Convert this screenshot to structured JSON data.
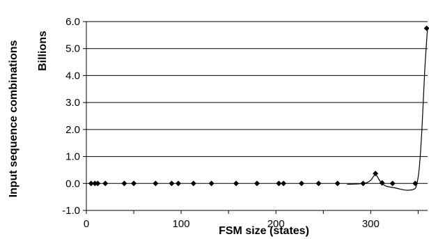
{
  "chart_data": {
    "type": "scatter",
    "title": "",
    "xlabel": "FSM size (states)",
    "ylabel": "Input sequence combinations",
    "yunit": "Billions",
    "xlim": [
      0,
      360
    ],
    "ylim": [
      -1.0,
      6.0
    ],
    "x_ticks": [
      0,
      100,
      200,
      300
    ],
    "x_tick_labels": [
      "0",
      "100",
      "200",
      "300"
    ],
    "y_ticks": [
      -1.0,
      0.0,
      1.0,
      2.0,
      3.0,
      4.0,
      5.0,
      6.0
    ],
    "y_tick_labels": [
      "-1.0",
      "0.0",
      "1.0",
      "2.0",
      "3.0",
      "4.0",
      "5.0",
      "6.0"
    ],
    "grid": "horizontal",
    "legend": "none",
    "marker_color": "#000000",
    "series": [
      {
        "x": [
          5,
          9,
          12,
          20,
          40,
          50,
          73,
          90,
          97,
          113,
          132,
          158,
          180,
          203,
          208,
          227,
          245,
          265,
          292,
          305,
          312,
          323,
          347,
          359
        ],
        "y": [
          0,
          0,
          0,
          0,
          0,
          0,
          0,
          0,
          0,
          0,
          0,
          0,
          0,
          0,
          0,
          0,
          0,
          0,
          0,
          0.37,
          0.02,
          0,
          0,
          5.75
        ]
      }
    ],
    "trendline": {
      "x": [
        275,
        285,
        295,
        300,
        305,
        310,
        315,
        320,
        325,
        330,
        335,
        340,
        345,
        348,
        351,
        354,
        357,
        360
      ],
      "y": [
        -0.03,
        -0.02,
        0.02,
        0.12,
        0.32,
        0.08,
        -0.08,
        -0.13,
        -0.16,
        -0.2,
        -0.24,
        -0.25,
        -0.22,
        -0.1,
        0.5,
        2.0,
        4.2,
        5.8
      ]
    }
  }
}
